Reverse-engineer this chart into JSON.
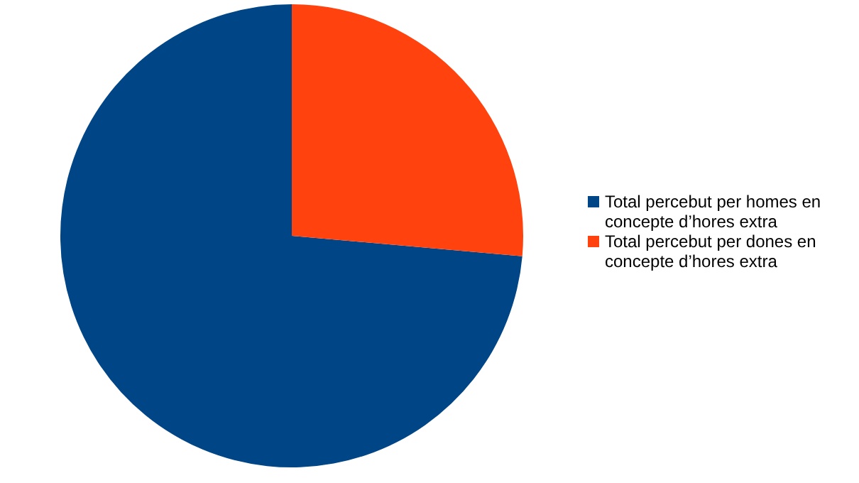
{
  "chart_data": {
    "type": "pie",
    "categories": [
      "Total percebut per homes en concepte d’hores extra",
      "Total percebut per dones en concepte d’hores extra"
    ],
    "values": [
      73.6,
      26.4
    ],
    "colors": [
      "#004586",
      "#ff420e"
    ],
    "legend": "right"
  }
}
